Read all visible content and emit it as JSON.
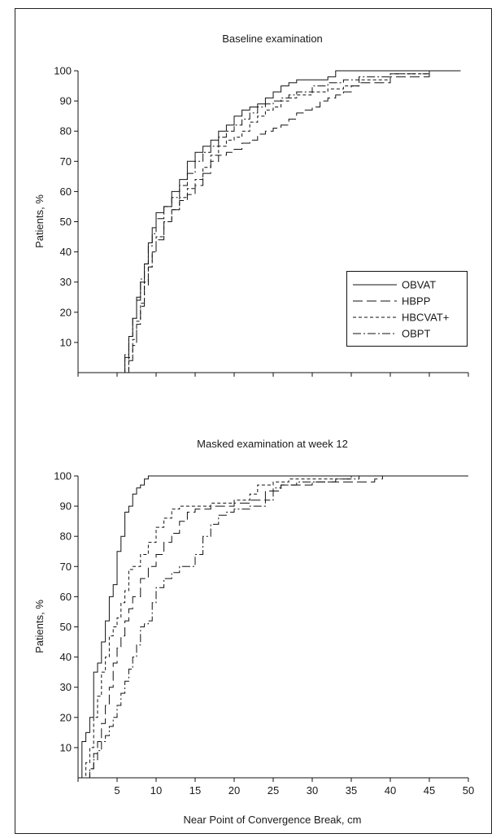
{
  "chart_data": [
    {
      "type": "line",
      "title": "Baseline examination",
      "xlabel": "",
      "ylabel": "Patients, %",
      "xlim": [
        0,
        50
      ],
      "ylim": [
        0,
        100
      ],
      "x_ticks": [
        0,
        5,
        10,
        15,
        20,
        25,
        30,
        35,
        40,
        45,
        50
      ],
      "x_tick_labels": [],
      "y_ticks": [
        10,
        20,
        30,
        40,
        50,
        60,
        70,
        80,
        90,
        100
      ],
      "y_tick_labels": [
        "10",
        "20",
        "30",
        "40",
        "50",
        "60",
        "70",
        "80",
        "90",
        "100"
      ],
      "grid": false,
      "legend": {
        "placement": "right-middle",
        "entries": [
          "OBVAT",
          "HBPP",
          "HBCVAT+",
          "OBPT"
        ]
      },
      "series": [
        {
          "name": "OBVAT",
          "dash": "solid",
          "x": [
            5.5,
            6,
            6.5,
            7,
            7.5,
            8,
            8.5,
            9,
            9.5,
            10,
            11,
            12,
            13,
            14,
            15,
            16,
            17,
            18,
            19,
            20,
            21,
            22,
            23,
            24,
            25,
            26,
            27,
            28,
            30,
            32,
            33,
            35,
            40,
            45,
            49
          ],
          "y": [
            0,
            5,
            12,
            18,
            25,
            30,
            36,
            43,
            48,
            53,
            55,
            60,
            64,
            70,
            73,
            75,
            77,
            80,
            82,
            85,
            87,
            88,
            89,
            91,
            93,
            95,
            96,
            97,
            97,
            98,
            100,
            100,
            100,
            100,
            100
          ]
        },
        {
          "name": "HBPP",
          "dash": "long-dash",
          "x": [
            6,
            6.5,
            7,
            7.5,
            8,
            8.5,
            9,
            9.5,
            10,
            11,
            12,
            13,
            14,
            15,
            16,
            17,
            18,
            19,
            20,
            21,
            22,
            23,
            24,
            25,
            26,
            27,
            28,
            29,
            30,
            31,
            32,
            33,
            34,
            35,
            36,
            40,
            45,
            49
          ],
          "y": [
            0,
            4,
            9,
            16,
            22,
            29,
            35,
            40,
            44,
            50,
            54,
            57,
            59,
            62,
            66,
            70,
            72,
            73,
            74,
            76,
            77,
            79,
            80,
            81,
            82,
            84,
            86,
            87,
            88,
            90,
            91,
            92,
            93,
            95,
            96,
            98,
            100,
            100
          ]
        },
        {
          "name": "HBCVAT+",
          "dash": "short-dash",
          "x": [
            6,
            6.5,
            7,
            7.5,
            8,
            8.5,
            9,
            9.5,
            10,
            11,
            12,
            13,
            14,
            15,
            16,
            17,
            18,
            19,
            20,
            21,
            22,
            23,
            24,
            25,
            26,
            27,
            28,
            30,
            32,
            34,
            36,
            40,
            45,
            49
          ],
          "y": [
            0,
            5,
            11,
            17,
            23,
            30,
            35,
            40,
            45,
            50,
            54,
            58,
            61,
            64,
            68,
            72,
            75,
            77,
            78,
            80,
            83,
            85,
            87,
            88,
            90,
            91,
            92,
            93,
            94,
            95,
            97,
            99,
            100,
            100
          ]
        },
        {
          "name": "OBPT",
          "dash": "dash-dot",
          "x": [
            5.5,
            6,
            6.5,
            7,
            7.5,
            8,
            8.5,
            9,
            9.5,
            10,
            11,
            12,
            13,
            14,
            15,
            16,
            17,
            18,
            19,
            20,
            21,
            22,
            23,
            24,
            25,
            26,
            27,
            28,
            30,
            32,
            34,
            36,
            40,
            45,
            49
          ],
          "y": [
            0,
            6,
            12,
            18,
            24,
            31,
            36,
            42,
            46,
            51,
            55,
            58,
            62,
            66,
            70,
            73,
            75,
            78,
            80,
            82,
            84,
            86,
            88,
            89,
            90,
            91,
            92,
            93,
            95,
            96,
            97,
            98,
            99,
            100,
            100
          ]
        }
      ]
    },
    {
      "type": "line",
      "title": "Masked examination at week 12",
      "xlabel": "Near Point of Convergence Break, cm",
      "ylabel": "Patients, %",
      "xlim": [
        0,
        50
      ],
      "ylim": [
        0,
        100
      ],
      "x_ticks": [
        0,
        5,
        10,
        15,
        20,
        25,
        30,
        35,
        40,
        45,
        50
      ],
      "x_tick_labels": [
        "",
        "5",
        "10",
        "15",
        "20",
        "25",
        "30",
        "35",
        "40",
        "45",
        "50"
      ],
      "y_ticks": [
        10,
        20,
        30,
        40,
        50,
        60,
        70,
        80,
        90,
        100
      ],
      "y_tick_labels": [
        "10",
        "20",
        "30",
        "40",
        "50",
        "60",
        "70",
        "80",
        "90",
        "100"
      ],
      "grid": false,
      "series": [
        {
          "name": "OBVAT",
          "dash": "solid",
          "x": [
            0,
            0.5,
            1,
            1.5,
            2,
            2.5,
            3,
            3.5,
            4,
            4.5,
            5,
            5.5,
            6,
            6.5,
            7,
            7.5,
            8,
            8.5,
            9,
            15,
            20,
            30,
            40,
            50
          ],
          "y": [
            0,
            12,
            15,
            20,
            35,
            38,
            45,
            52,
            60,
            64,
            75,
            80,
            88,
            90,
            94,
            96,
            97,
            99,
            100,
            100,
            100,
            100,
            100,
            100
          ]
        },
        {
          "name": "HBPP",
          "dash": "long-dash",
          "x": [
            1,
            1.5,
            2,
            2.5,
            3,
            3.5,
            4,
            4.5,
            5,
            5.5,
            6,
            6.5,
            7,
            8,
            9,
            10,
            11,
            12,
            13,
            14,
            15,
            17,
            20,
            22,
            24,
            26,
            30,
            33,
            35,
            36,
            38,
            39,
            45,
            50
          ],
          "y": [
            0,
            3,
            8,
            12,
            18,
            24,
            30,
            38,
            43,
            47,
            52,
            56,
            60,
            66,
            70,
            74,
            78,
            81,
            85,
            88,
            89,
            90,
            91,
            92,
            95,
            97,
            98,
            98,
            98,
            98,
            99,
            100,
            100,
            100
          ]
        },
        {
          "name": "HBCVAT+",
          "dash": "short-dash",
          "x": [
            0.5,
            1,
            1.5,
            2,
            2.5,
            3,
            3.5,
            4,
            4.5,
            5,
            5.5,
            6,
            6.5,
            7,
            8,
            9,
            10,
            11,
            12,
            13,
            14,
            15,
            17,
            20,
            22,
            23,
            25,
            27,
            30,
            35,
            40,
            45,
            50
          ],
          "y": [
            0,
            5,
            10,
            20,
            27,
            35,
            40,
            47,
            50,
            53,
            58,
            62,
            69,
            70,
            74,
            78,
            83,
            86,
            89,
            90,
            90,
            90,
            91,
            92,
            94,
            97,
            98,
            99,
            99,
            100,
            100,
            100,
            100
          ]
        },
        {
          "name": "OBPT",
          "dash": "dash-dot",
          "x": [
            1,
            1.5,
            2,
            2.5,
            3,
            3.5,
            4,
            4.5,
            5,
            5.5,
            6,
            6.5,
            7,
            7.5,
            8,
            8.5,
            9,
            9.5,
            10,
            11,
            12,
            13,
            14,
            15,
            16,
            17,
            18,
            19,
            20,
            22,
            24,
            25,
            26,
            28,
            30,
            33,
            36,
            40,
            50
          ],
          "y": [
            0,
            3,
            6,
            9,
            12,
            14,
            17,
            20,
            24,
            28,
            32,
            36,
            40,
            44,
            50,
            51,
            52,
            58,
            63,
            66,
            68,
            70,
            70,
            74,
            80,
            84,
            87,
            88,
            89,
            90,
            92,
            96,
            97,
            98,
            98,
            99,
            100,
            100,
            100
          ]
        }
      ]
    }
  ]
}
